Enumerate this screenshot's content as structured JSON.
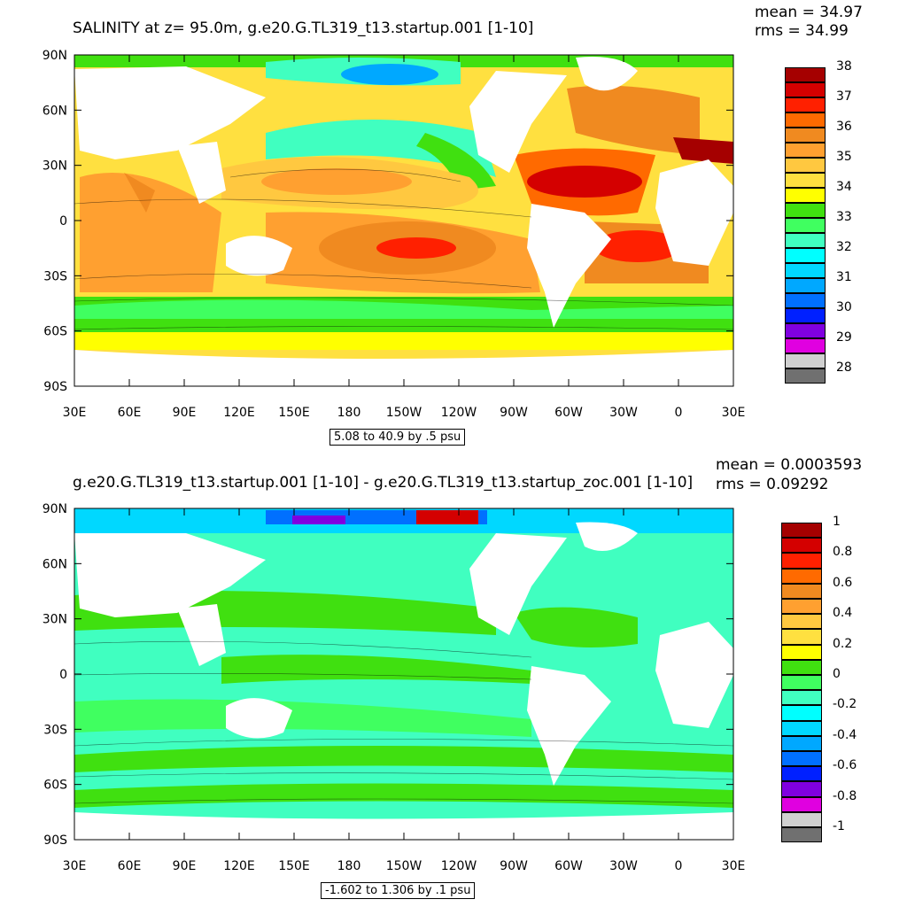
{
  "panels": [
    {
      "title": "SALINITY at z=  95.0m, g.e20.G.TL319_t13.startup.001 [1-10]",
      "mean": "mean = 34.97",
      "rms": "rms = 34.99",
      "contour_info": "5.08 to 40.9 by .5 psu",
      "colorbar": {
        "labels": [
          "38",
          "37",
          "36",
          "35",
          "34",
          "33",
          "32",
          "31",
          "30",
          "29",
          "28"
        ],
        "colors": [
          "#a50000",
          "#d40000",
          "#ff2000",
          "#ff6a00",
          "#f08a20",
          "#ffa030",
          "#ffc840",
          "#ffe040",
          "#ffff00",
          "#40e010",
          "#40ff60",
          "#40ffc0",
          "#00ffff",
          "#00d8ff",
          "#00a8ff",
          "#0070ff",
          "#0020ff",
          "#8000e0",
          "#e000e0",
          "#d0d0d0",
          "#707070"
        ]
      }
    },
    {
      "title": "g.e20.G.TL319_t13.startup.001 [1-10] - g.e20.G.TL319_t13.startup_zoc.001 [1-10]",
      "mean": "mean = 0.0003593",
      "rms": "rms = 0.09292",
      "contour_info": "-1.602 to 1.306 by .1 psu",
      "colorbar": {
        "labels": [
          "1",
          "0.8",
          "0.6",
          "0.4",
          "0.2",
          "0",
          "-0.2",
          "-0.4",
          "-0.6",
          "-0.8",
          "-1"
        ],
        "colors": [
          "#a50000",
          "#d40000",
          "#ff2000",
          "#ff6a00",
          "#f08a20",
          "#ffa030",
          "#ffc840",
          "#ffe040",
          "#ffff00",
          "#40e010",
          "#40ff60",
          "#40ffc0",
          "#00ffff",
          "#00d8ff",
          "#00a8ff",
          "#0070ff",
          "#0020ff",
          "#8000e0",
          "#e000e0",
          "#d0d0d0",
          "#707070"
        ]
      }
    }
  ],
  "axes": {
    "lat_labels": [
      "90N",
      "60N",
      "30N",
      "0",
      "30S",
      "60S",
      "90S"
    ],
    "lon_labels": [
      "30E",
      "60E",
      "90E",
      "120E",
      "150E",
      "180",
      "150W",
      "120W",
      "90W",
      "60W",
      "30W",
      "0",
      "30E"
    ]
  }
}
